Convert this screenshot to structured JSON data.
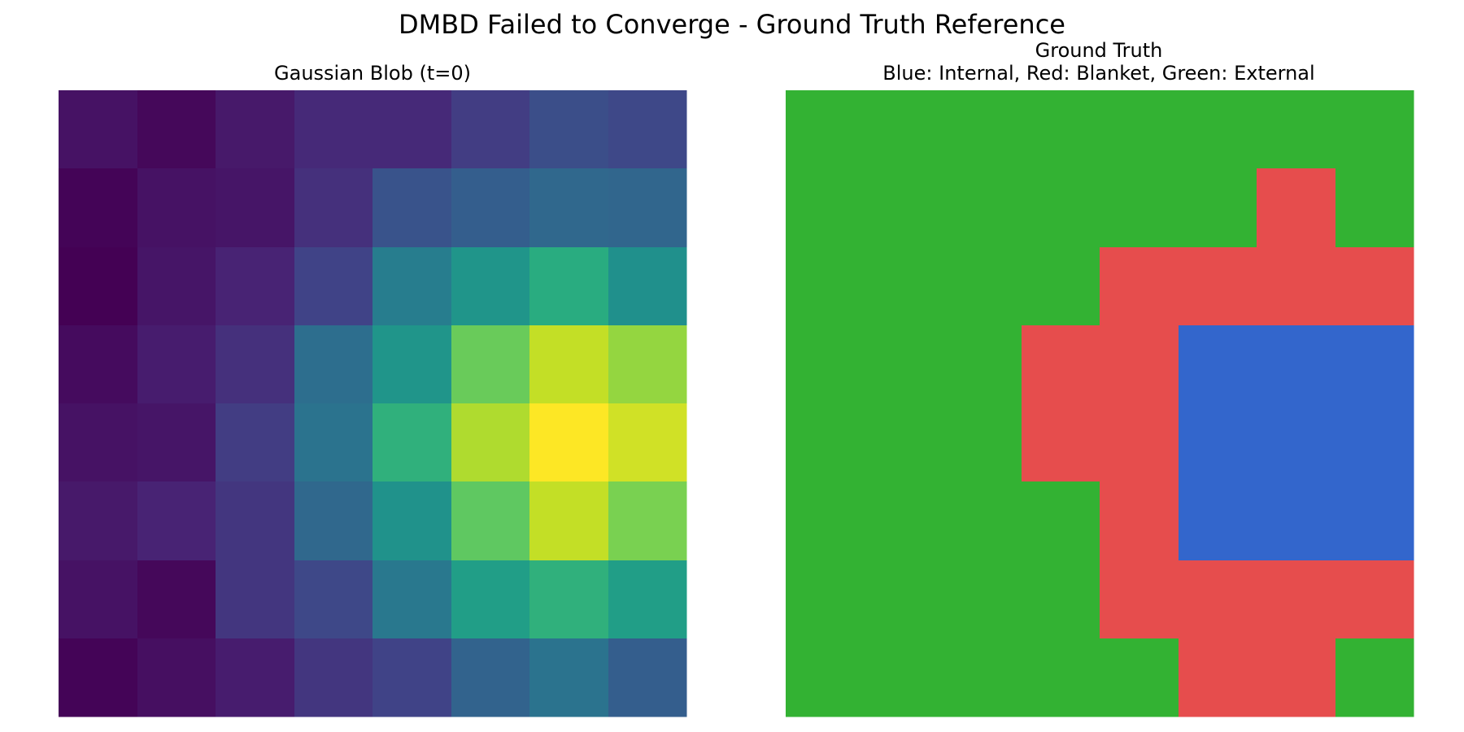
{
  "suptitle": "DMBD Failed to Converge - Ground Truth Reference",
  "chart_data": [
    {
      "type": "heatmap",
      "title": "Gaussian Blob (t=0)",
      "colormap": "viridis",
      "rows": 8,
      "cols": 8,
      "values": [
        [
          0.05,
          0.02,
          0.07,
          0.12,
          0.12,
          0.18,
          0.24,
          0.22
        ],
        [
          0.01,
          0.05,
          0.06,
          0.14,
          0.26,
          0.3,
          0.34,
          0.33
        ],
        [
          0.0,
          0.06,
          0.1,
          0.2,
          0.42,
          0.52,
          0.62,
          0.5
        ],
        [
          0.03,
          0.08,
          0.14,
          0.36,
          0.52,
          0.77,
          0.91,
          0.84
        ],
        [
          0.05,
          0.06,
          0.18,
          0.38,
          0.64,
          0.88,
          1.0,
          0.93
        ],
        [
          0.07,
          0.1,
          0.16,
          0.34,
          0.51,
          0.75,
          0.91,
          0.8
        ],
        [
          0.05,
          0.02,
          0.16,
          0.22,
          0.4,
          0.56,
          0.64,
          0.56
        ],
        [
          0.01,
          0.04,
          0.08,
          0.16,
          0.2,
          0.32,
          0.38,
          0.3
        ]
      ]
    },
    {
      "type": "heatmap",
      "title": "Ground Truth\nBlue: Internal, Red: Blanket, Green: External",
      "rows": 8,
      "cols": 8,
      "categories": [
        "Internal",
        "Blanket",
        "External"
      ],
      "category_colors": {
        "Internal": "#3366cc",
        "Blanket": "#e64d4d",
        "External": "#33b233"
      },
      "values": [
        [
          "External",
          "External",
          "External",
          "External",
          "External",
          "External",
          "External",
          "External"
        ],
        [
          "External",
          "External",
          "External",
          "External",
          "External",
          "External",
          "Blanket",
          "External"
        ],
        [
          "External",
          "External",
          "External",
          "External",
          "Blanket",
          "Blanket",
          "Blanket",
          "Blanket"
        ],
        [
          "External",
          "External",
          "External",
          "Blanket",
          "Blanket",
          "Internal",
          "Internal",
          "Internal"
        ],
        [
          "External",
          "External",
          "External",
          "Blanket",
          "Blanket",
          "Internal",
          "Internal",
          "Internal"
        ],
        [
          "External",
          "External",
          "External",
          "External",
          "Blanket",
          "Internal",
          "Internal",
          "Internal"
        ],
        [
          "External",
          "External",
          "External",
          "External",
          "Blanket",
          "Blanket",
          "Blanket",
          "Blanket"
        ],
        [
          "External",
          "External",
          "External",
          "External",
          "External",
          "Blanket",
          "Blanket",
          "External"
        ]
      ]
    }
  ]
}
